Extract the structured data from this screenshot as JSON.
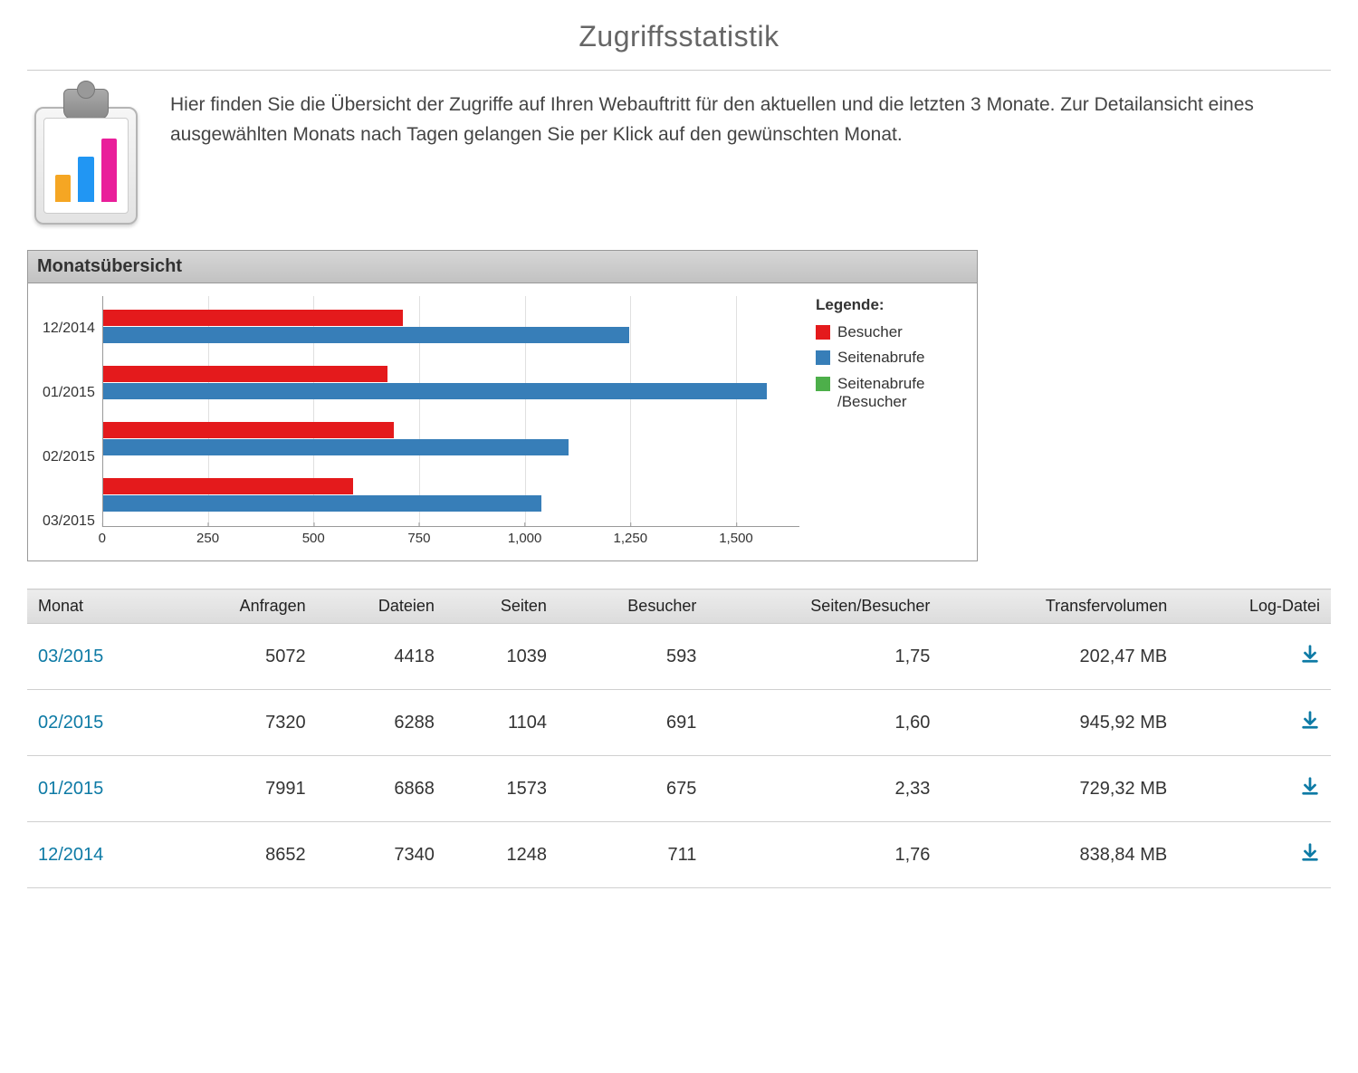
{
  "page": {
    "title": "Zugriffsstatistik",
    "intro": "Hier finden Sie die Übersicht der Zugriffe auf Ihren Webauftritt für den aktuellen und die letzten 3 Monate. Zur Detailansicht eines ausgewählten Monats nach Tagen gelangen Sie per Klick auf den gewünschten Monat."
  },
  "chart": {
    "title": "Monatsübersicht",
    "type": "grouped-horizontal-bar",
    "legend_title": "Legende:",
    "series": [
      {
        "key": "besucher",
        "label": "Besucher",
        "color": "#e41a1c"
      },
      {
        "key": "seitenabrufe",
        "label": "Seitenabrufe",
        "color": "#377eb8"
      },
      {
        "key": "ratio",
        "label": "Seitenabrufe /Besucher",
        "color": "#4daf4a"
      }
    ],
    "x_ticks": [
      0,
      250,
      500,
      750,
      1000,
      1250,
      1500
    ],
    "x_tick_labels": [
      "0",
      "250",
      "500",
      "750",
      "1,000",
      "1,250",
      "1,500"
    ],
    "x_max": 1650,
    "rows": [
      {
        "label": "12/2014",
        "besucher": 711,
        "seitenabrufe": 1248,
        "ratio": 1.76
      },
      {
        "label": "01/2015",
        "besucher": 675,
        "seitenabrufe": 1573,
        "ratio": 2.33
      },
      {
        "label": "02/2015",
        "besucher": 691,
        "seitenabrufe": 1104,
        "ratio": 1.6
      },
      {
        "label": "03/2015",
        "besucher": 593,
        "seitenabrufe": 1039,
        "ratio": 1.75
      }
    ],
    "grid_color": "#e0e0e0",
    "axis_color": "#999999",
    "background": "#ffffff"
  },
  "table": {
    "columns": [
      {
        "key": "monat",
        "label": "Monat",
        "align": "left"
      },
      {
        "key": "anfragen",
        "label": "Anfragen",
        "align": "right"
      },
      {
        "key": "dateien",
        "label": "Dateien",
        "align": "right"
      },
      {
        "key": "seiten",
        "label": "Seiten",
        "align": "right"
      },
      {
        "key": "besucher",
        "label": "Besucher",
        "align": "right"
      },
      {
        "key": "seiten_pro_besucher",
        "label": "Seiten/Besucher",
        "align": "right"
      },
      {
        "key": "transfer",
        "label": "Transfervolumen",
        "align": "right"
      },
      {
        "key": "log",
        "label": "Log-Datei",
        "align": "right"
      }
    ],
    "rows": [
      {
        "monat": "03/2015",
        "anfragen": "5072",
        "dateien": "4418",
        "seiten": "1039",
        "besucher": "593",
        "seiten_pro_besucher": "1,75",
        "transfer": "202,47 MB"
      },
      {
        "monat": "02/2015",
        "anfragen": "7320",
        "dateien": "6288",
        "seiten": "1104",
        "besucher": "691",
        "seiten_pro_besucher": "1,60",
        "transfer": "945,92 MB"
      },
      {
        "monat": "01/2015",
        "anfragen": "7991",
        "dateien": "6868",
        "seiten": "1573",
        "besucher": "675",
        "seiten_pro_besucher": "2,33",
        "transfer": "729,32 MB"
      },
      {
        "monat": "12/2014",
        "anfragen": "8652",
        "dateien": "7340",
        "seiten": "1248",
        "besucher": "711",
        "seiten_pro_besucher": "1,76",
        "transfer": "838,84 MB"
      }
    ]
  },
  "colors": {
    "link": "#0d7aa5",
    "text": "#333333",
    "header_grad_top": "#ececec",
    "header_grad_bottom": "#dcdcdc"
  }
}
